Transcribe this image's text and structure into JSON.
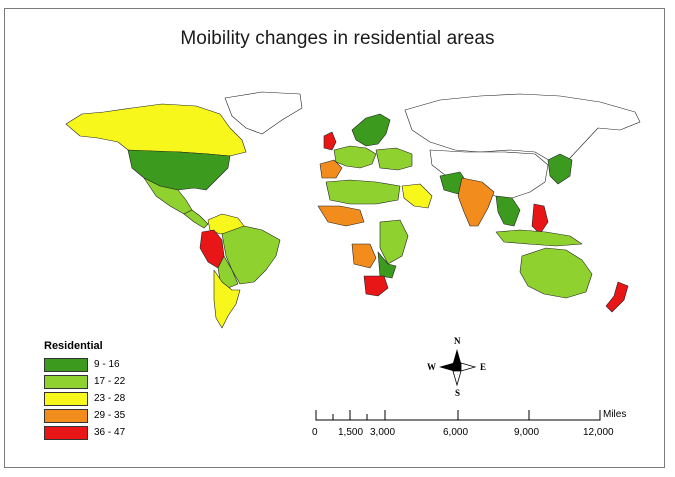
{
  "title": "Moibility changes in residential areas",
  "legend": {
    "title": "Residential",
    "classes": [
      {
        "label": "9 - 16",
        "color": "#3c9a1e"
      },
      {
        "label": "17 - 22",
        "color": "#8fd12f"
      },
      {
        "label": "23 - 28",
        "color": "#f7f71c"
      },
      {
        "label": "29 - 35",
        "color": "#f28c1c"
      },
      {
        "label": "36 - 47",
        "color": "#e81616"
      }
    ]
  },
  "north_arrow": {
    "n": "N",
    "s": "S",
    "e": "E",
    "w": "W"
  },
  "scale_bar": {
    "unit": "Miles",
    "ticks": [
      "0",
      "1,500",
      "3,000",
      "6,000",
      "9,000",
      "12,000"
    ]
  },
  "regions": [
    {
      "name": "alaska-canada",
      "class": 2
    },
    {
      "name": "greenland",
      "class": null
    },
    {
      "name": "united-states",
      "class": 0
    },
    {
      "name": "mexico",
      "class": 1
    },
    {
      "name": "central-america",
      "class": 1
    },
    {
      "name": "colombia-venezuela",
      "class": 2
    },
    {
      "name": "peru",
      "class": 4
    },
    {
      "name": "brazil",
      "class": 1
    },
    {
      "name": "bolivia-paraguay",
      "class": 1
    },
    {
      "name": "chile-argentina",
      "class": 2
    },
    {
      "name": "uk-ireland",
      "class": 4
    },
    {
      "name": "scandinavia",
      "class": 0
    },
    {
      "name": "western-europe",
      "class": 1
    },
    {
      "name": "iberia",
      "class": 3
    },
    {
      "name": "eastern-europe",
      "class": 1
    },
    {
      "name": "north-africa",
      "class": 1
    },
    {
      "name": "saudi-arabia",
      "class": 2
    },
    {
      "name": "west-africa",
      "class": 3
    },
    {
      "name": "angola",
      "class": 3
    },
    {
      "name": "east-africa",
      "class": 1
    },
    {
      "name": "south-africa",
      "class": 4
    },
    {
      "name": "mozambique",
      "class": 0
    },
    {
      "name": "pakistan-afghanistan",
      "class": 0
    },
    {
      "name": "india",
      "class": 3
    },
    {
      "name": "southeast-asia",
      "class": 0
    },
    {
      "name": "philippines",
      "class": 4
    },
    {
      "name": "japan-korea",
      "class": 0
    },
    {
      "name": "indonesia",
      "class": 1
    },
    {
      "name": "australia",
      "class": 1
    },
    {
      "name": "new-zealand",
      "class": 4
    },
    {
      "name": "russia",
      "class": null
    },
    {
      "name": "china",
      "class": null
    }
  ]
}
